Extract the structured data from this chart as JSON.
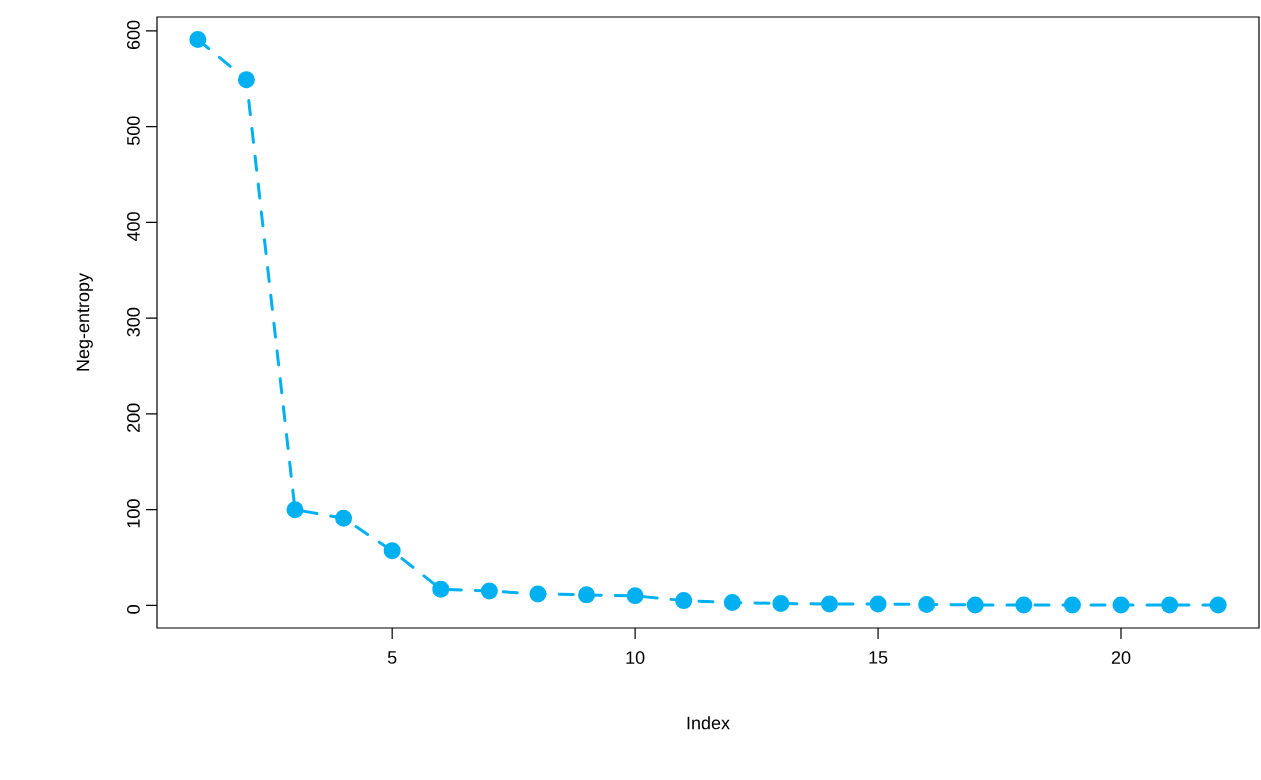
{
  "chart_data": {
    "type": "line",
    "xlabel": "Index",
    "ylabel": "Neg-entropy",
    "x": [
      1,
      2,
      3,
      4,
      5,
      6,
      7,
      8,
      9,
      10,
      11,
      12,
      13,
      14,
      15,
      16,
      17,
      18,
      19,
      20,
      21,
      22
    ],
    "values": [
      591,
      549,
      100,
      91,
      57,
      17,
      15,
      12,
      11,
      10,
      5,
      3,
      2,
      1.5,
      1.5,
      1,
      0.5,
      0.5,
      0.5,
      0.5,
      0.5,
      0.5
    ],
    "color": "#00b0f0",
    "marker": "circle",
    "line_style": "dashed",
    "xlim": [
      0.16,
      22.84
    ],
    "ylim": [
      -23.6,
      614.6
    ],
    "xticks": [
      5,
      10,
      15,
      20
    ],
    "yticks": [
      0,
      100,
      200,
      300,
      400,
      500,
      600
    ]
  }
}
